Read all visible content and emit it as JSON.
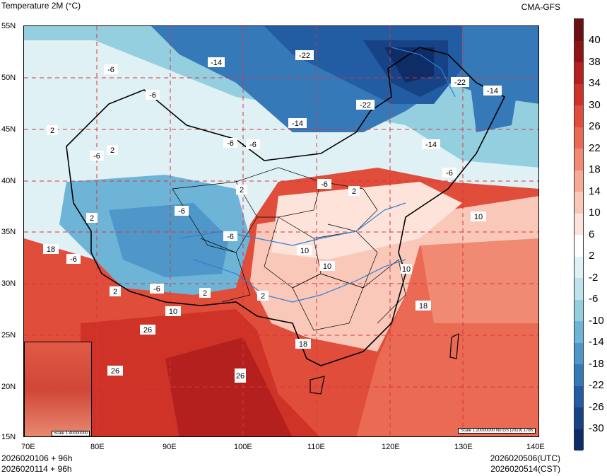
{
  "header": {
    "title": "Temperature  2M (°C)",
    "source": "CMA-GFS"
  },
  "axes": {
    "lat_labels": [
      "55N",
      "50N",
      "45N",
      "40N",
      "35N",
      "30N",
      "25N",
      "20N",
      "15N"
    ],
    "lon_labels": [
      "70E",
      "80E",
      "90E",
      "100E",
      "110E",
      "120E",
      "130E",
      "140E"
    ]
  },
  "colorbar": {
    "labels": [
      "40",
      "38",
      "34",
      "30",
      "26",
      "22",
      "18",
      "14",
      "10",
      "6",
      "2",
      "-2",
      "-6",
      "-10",
      "-14",
      "-18",
      "-22",
      "-26",
      "-30"
    ],
    "colors": [
      "#6b0f12",
      "#8e1416",
      "#b3201d",
      "#cf3328",
      "#e04d3b",
      "#ea6a54",
      "#f18a72",
      "#f6ab95",
      "#fac8b9",
      "#fde3da",
      "#ffffff",
      "#dff1f5",
      "#bfe3ec",
      "#94cfe0",
      "#6eb4d6",
      "#4f97c9",
      "#3579b8",
      "#225ca3",
      "#164286",
      "#0e2c66"
    ]
  },
  "map": {
    "contour_labels": [
      "-14",
      "-6",
      "-22",
      "-22",
      "-14",
      "-22",
      "-6",
      "2",
      "-14",
      "-6",
      "-14",
      "2",
      "-6",
      "-6",
      "2",
      "-6",
      "-6",
      "2",
      "10",
      "10",
      "10",
      "18",
      "-6",
      "2",
      "-6",
      "2",
      "10",
      "26",
      "26",
      "26",
      "18",
      "18",
      "10",
      "-6",
      "2",
      "-6",
      "2"
    ],
    "inset_scale": "Scale 1:40000000",
    "main_scale": "Scale 1:20000000 No:GS (2019) 1786"
  },
  "footer": {
    "init_utc": "2026020106 + 96h",
    "init_cst": "2026020114 + 96h",
    "valid_utc": "2026020506(UTC)",
    "valid_cst": "2026020514(CST)"
  }
}
